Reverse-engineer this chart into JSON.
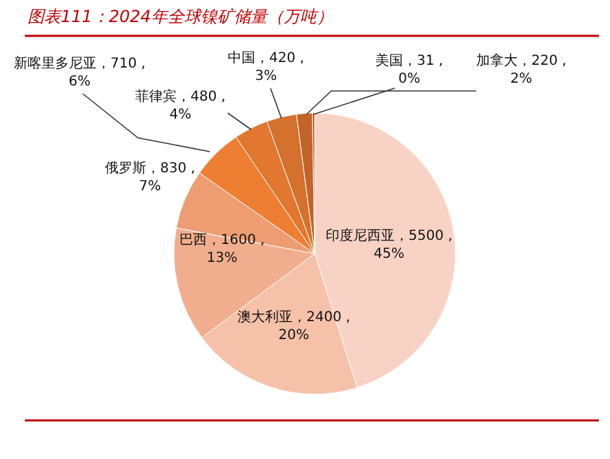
{
  "chart_data": {
    "type": "pie",
    "title": "图表111：2024年全球镍矿储量（万吨）",
    "categories": [
      "印度尼西亚",
      "澳大利亚",
      "巴西",
      "俄罗斯",
      "新喀里多尼亚",
      "菲律宾",
      "中国",
      "加拿大",
      "美国"
    ],
    "values": [
      5500,
      2400,
      1600,
      830,
      710,
      480,
      420,
      220,
      31
    ],
    "value_labels": [
      "5500 , 45%",
      "2400 , 20%",
      "1600 , 13%",
      "830 , 7%",
      "710 , 6%",
      "480 , 4%",
      "420 , 3%",
      "220 , 2%",
      "31 , 0%"
    ],
    "colors": [
      "#f8d3c5",
      "#f5c1a9",
      "#f1ae8f",
      "#ee9c71",
      "#ed7e32",
      "#e2782f",
      "#d4712c",
      "#c2642a",
      "#a85422"
    ]
  }
}
